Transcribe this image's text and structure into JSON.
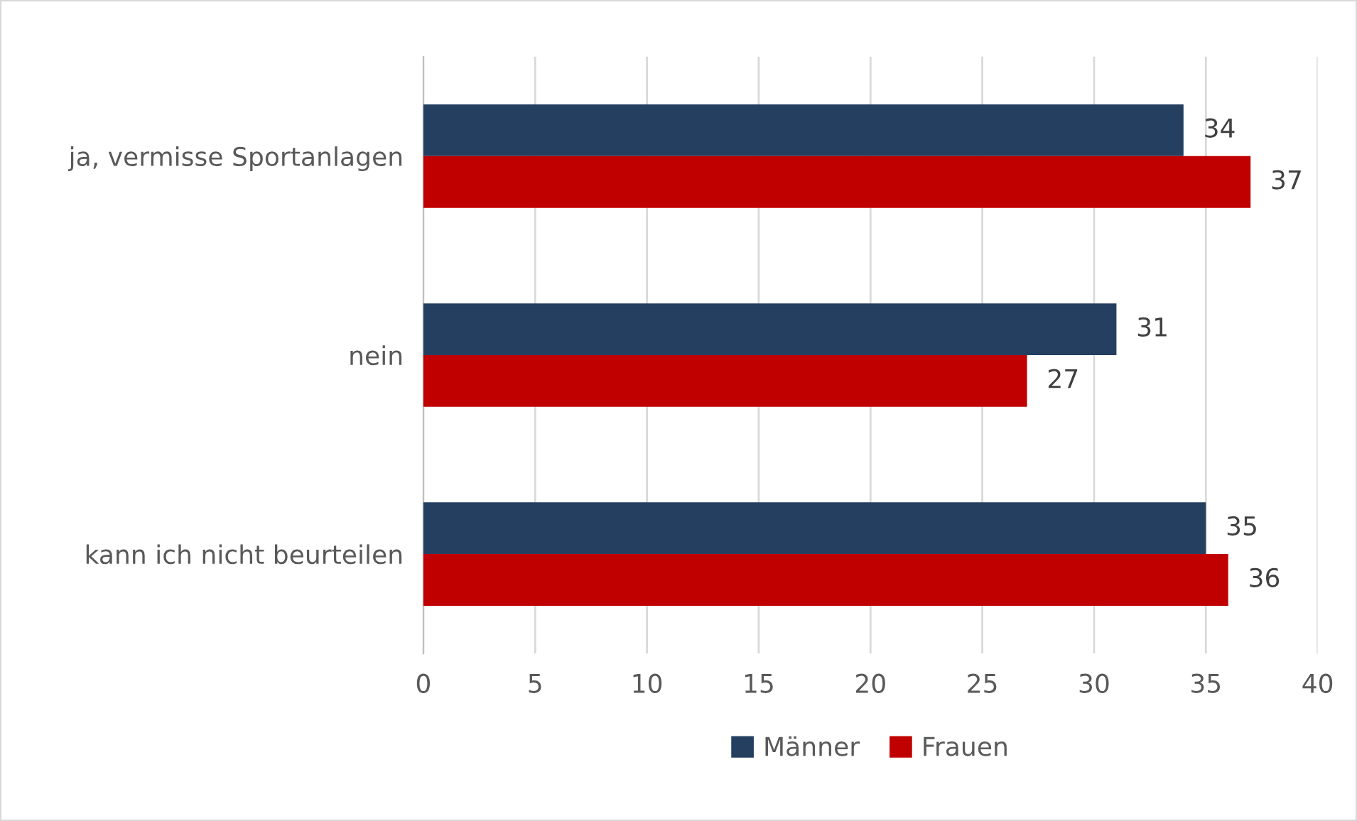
{
  "chart_data": {
    "type": "bar",
    "orientation": "horizontal",
    "categories": [
      "ja, vermisse Sportanlagen",
      "nein",
      "kann ich nicht beurteilen"
    ],
    "series": [
      {
        "name": "Männer",
        "color": "#243f60",
        "values": [
          34,
          31,
          35
        ]
      },
      {
        "name": "Frauen",
        "color": "#c00000",
        "values": [
          37,
          27,
          36
        ]
      }
    ],
    "xlim": [
      0,
      40
    ],
    "xticks": [
      0,
      5,
      10,
      15,
      20,
      25,
      30,
      35,
      40
    ],
    "grid": "x",
    "legend": "bottom",
    "data_labels": true
  }
}
